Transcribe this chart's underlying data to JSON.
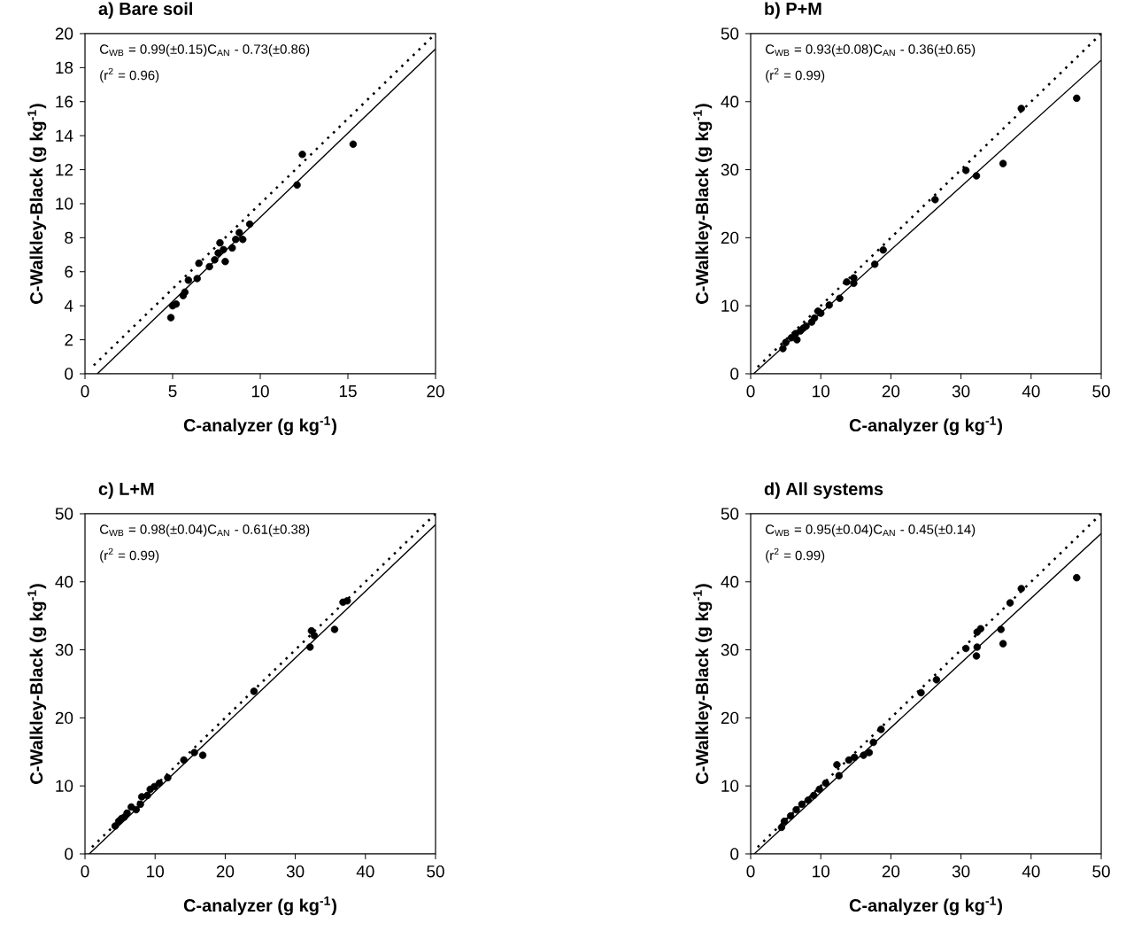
{
  "chart_data": [
    {
      "type": "scatter",
      "title": "a) Bare soil",
      "xlabel": "C-analyzer (g kg$^{-1}$)",
      "ylabel": "C-Walkley-Black (g kg$^{-1}$)",
      "xlim": [
        0,
        20
      ],
      "ylim": [
        0,
        20
      ],
      "xticks": [
        0,
        5,
        10,
        15,
        20
      ],
      "yticks": [
        0,
        2,
        4,
        6,
        8,
        10,
        12,
        14,
        16,
        18,
        20
      ],
      "annotations": [
        "C$_{WB}$ = 0.99(±0.15)C$_{AN}$ - 0.73(±0.86)",
        "(r$^{2}$ = 0.96)"
      ],
      "series": [
        {
          "color": "#000000",
          "x": [
            4.9,
            5.0,
            5.2,
            5.6,
            5.7,
            5.9,
            6.4,
            6.5,
            7.1,
            7.4,
            7.6,
            7.7,
            7.9,
            8.0,
            8.4,
            8.6,
            8.8,
            9.0,
            9.4,
            12.1,
            12.4,
            15.3
          ],
          "values": [
            3.3,
            4.0,
            4.1,
            4.6,
            4.8,
            5.5,
            5.6,
            6.5,
            6.3,
            6.7,
            7.1,
            7.7,
            7.3,
            6.6,
            7.4,
            7.9,
            8.3,
            7.9,
            8.8,
            11.1,
            12.9,
            13.5
          ]
        },
        {
          "type": "line",
          "color": "#000000",
          "marker": "none",
          "line_style": "solid",
          "x": [
            0.7,
            20
          ],
          "values": [
            0,
            19.1
          ]
        },
        {
          "type": "line",
          "color": "#000000",
          "marker": "none",
          "line_style": "dotted",
          "x": [
            0.5,
            19.8
          ],
          "values": [
            0.5,
            19.8
          ]
        }
      ]
    },
    {
      "type": "scatter",
      "title": "b) P+M",
      "xlabel": "C-analyzer (g kg$^{-1}$)",
      "ylabel": "C-Walkley-Black (g kg$^{-1}$)",
      "xlim": [
        0,
        50
      ],
      "ylim": [
        0,
        50
      ],
      "xticks": [
        0,
        10,
        20,
        30,
        40,
        50
      ],
      "yticks": [
        0,
        10,
        20,
        30,
        40,
        50
      ],
      "annotations": [
        "C$_{WB}$ = 0.93(±0.08)C$_{AN}$ - 0.36(±0.65)",
        "(r$^{2}$ = 0.99)"
      ],
      "series": [
        {
          "color": "#000000",
          "x": [
            4.6,
            5.0,
            5.8,
            6.4,
            6.6,
            7.1,
            7.5,
            7.9,
            8.7,
            9.1,
            9.6,
            10.0,
            11.2,
            12.7,
            13.7,
            14.7,
            14.7,
            17.7,
            18.9,
            26.3,
            30.7,
            32.2,
            36.0,
            38.6,
            46.5
          ],
          "values": [
            3.7,
            4.6,
            5.3,
            5.9,
            5.0,
            6.3,
            6.7,
            7.0,
            7.6,
            8.2,
            9.2,
            8.9,
            10.1,
            11.1,
            13.5,
            14.1,
            13.3,
            16.1,
            18.2,
            25.6,
            29.9,
            29.1,
            30.9,
            39.0,
            40.5
          ]
        },
        {
          "type": "line",
          "color": "#000000",
          "marker": "none",
          "line_style": "solid",
          "x": [
            0.4,
            50
          ],
          "values": [
            0,
            46.1
          ]
        },
        {
          "type": "line",
          "color": "#000000",
          "marker": "none",
          "line_style": "dotted",
          "x": [
            1,
            50
          ],
          "values": [
            1,
            50
          ]
        }
      ]
    },
    {
      "type": "scatter",
      "title": "c) L+M",
      "xlabel": "C-analyzer (g kg$^{-1}$)",
      "ylabel": "C-Walkley-Black (g kg$^{-1}$)",
      "xlim": [
        0,
        50
      ],
      "ylim": [
        0,
        50
      ],
      "xticks": [
        0,
        10,
        20,
        30,
        40,
        50
      ],
      "yticks": [
        0,
        10,
        20,
        30,
        40,
        50
      ],
      "annotations": [
        "C$_{WB}$ = 0.98(±0.04)C$_{AN}$ - 0.61(±0.38)",
        "(r$^{2}$ = 0.99)"
      ],
      "series": [
        {
          "color": "#000000",
          "x": [
            4.3,
            4.8,
            5.2,
            5.6,
            6.0,
            6.6,
            7.3,
            7.9,
            8.1,
            8.9,
            9.3,
            9.9,
            10.6,
            11.8,
            14.1,
            15.6,
            16.8,
            24.1,
            32.1,
            32.3,
            32.7,
            35.6,
            36.8,
            37.4
          ],
          "values": [
            4.1,
            4.8,
            5.2,
            5.4,
            6.0,
            6.9,
            6.5,
            7.3,
            8.4,
            8.6,
            9.5,
            9.9,
            10.4,
            11.2,
            13.8,
            14.9,
            14.5,
            23.9,
            30.4,
            32.8,
            32.1,
            33.0,
            37.0,
            37.2
          ]
        },
        {
          "type": "line",
          "color": "#000000",
          "marker": "none",
          "line_style": "solid",
          "x": [
            0.6,
            50
          ],
          "values": [
            0,
            48.4
          ]
        },
        {
          "type": "line",
          "color": "#000000",
          "marker": "none",
          "line_style": "dotted",
          "x": [
            1,
            50
          ],
          "values": [
            1,
            50
          ]
        }
      ]
    },
    {
      "type": "scatter",
      "title": "d) All systems",
      "xlabel": "C-analyzer (g kg$^{-1}$)",
      "ylabel": "C-Walkley-Black (g kg$^{-1}$)",
      "xlim": [
        0,
        50
      ],
      "ylim": [
        0,
        50
      ],
      "xticks": [
        0,
        10,
        20,
        30,
        40,
        50
      ],
      "yticks": [
        0,
        10,
        20,
        30,
        40,
        50
      ],
      "annotations": [
        "C$_{WB}$ = 0.95(±0.04)C$_{AN}$ - 0.45(±0.14)",
        "(r$^{2}$ = 0.99)"
      ],
      "series": [
        {
          "color": "#000000",
          "x": [
            4.4,
            4.8,
            5.7,
            6.5,
            7.3,
            8.2,
            9.0,
            9.8,
            10.7,
            12.3,
            12.6,
            14.0,
            14.8,
            16.1,
            16.9,
            17.5,
            18.6,
            24.3,
            26.5,
            30.7,
            32.2,
            32.3,
            32.3,
            32.8,
            35.7,
            36.0,
            37.0,
            38.6,
            46.5
          ],
          "values": [
            3.9,
            4.8,
            5.6,
            6.5,
            7.3,
            7.9,
            8.6,
            9.5,
            10.4,
            13.1,
            11.5,
            13.8,
            14.2,
            14.5,
            14.9,
            16.4,
            18.3,
            23.7,
            25.6,
            30.2,
            29.1,
            30.4,
            32.6,
            33.1,
            33.0,
            30.9,
            36.9,
            39.0,
            40.6
          ]
        },
        {
          "type": "line",
          "color": "#000000",
          "marker": "none",
          "line_style": "solid",
          "x": [
            0.5,
            50
          ],
          "values": [
            0,
            47.1
          ]
        },
        {
          "type": "line",
          "color": "#000000",
          "marker": "none",
          "line_style": "dotted",
          "x": [
            1,
            50
          ],
          "values": [
            1,
            50
          ]
        }
      ]
    }
  ]
}
